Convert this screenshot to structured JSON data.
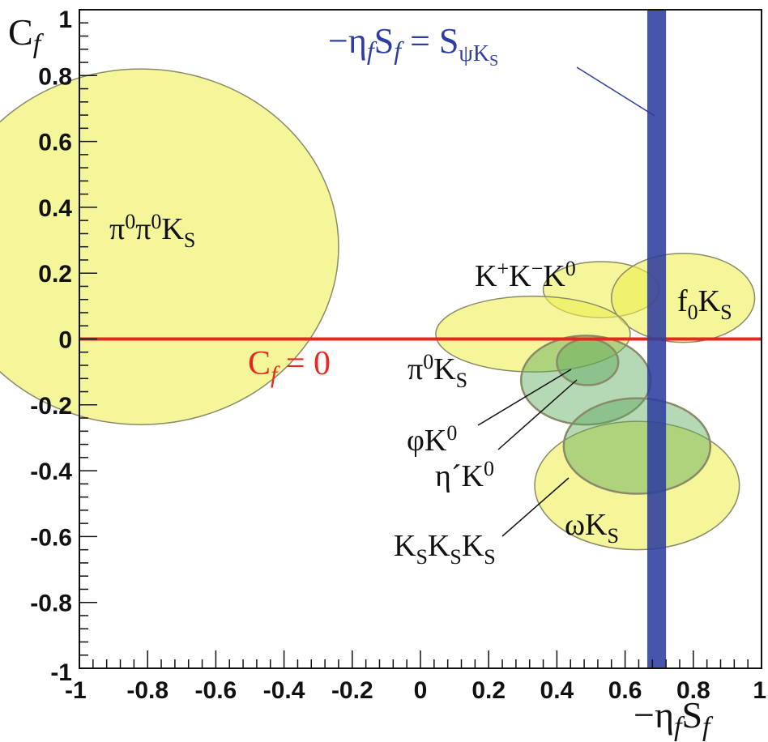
{
  "colors": {
    "ellipse_fill": "#eeee55",
    "ellipse_stroke": "#8a8a6a",
    "green_fill": "#5aa85a",
    "band_fill": "#2e3ea0",
    "zero_line": "#e8281e",
    "band_label": "#2e3ea0",
    "axis": "#111111"
  },
  "axes": {
    "x_ticks": [
      "-1",
      "-0.8",
      "-0.6",
      "-0.4",
      "-0.2",
      "0",
      "0.2",
      "0.4",
      "0.6",
      "0.8",
      "1"
    ],
    "y_ticks": [
      "-1",
      "-0.8",
      "-0.6",
      "-0.4",
      "-0.2",
      "0",
      "0.2",
      "0.4",
      "0.6",
      "0.8",
      "1"
    ],
    "x_label": {
      "main": "−η",
      "sub_f1": "f",
      "s": "S",
      "sub_f2": "f"
    },
    "y_label": {
      "main": "C",
      "sub": "f"
    }
  },
  "labels": {
    "pi0pi0ks": {
      "t1": "π",
      "s1": "0",
      "t2": "π",
      "s2": "0",
      "t3": "K",
      "s3": "S"
    },
    "kkk": {
      "t1": "K",
      "s1": "+",
      "t2": "K",
      "s2": "−",
      "t3": "K",
      "s3": "0"
    },
    "f0ks": {
      "t1": "f",
      "s1": "0",
      "t2": "K",
      "s2": "S"
    },
    "pi0ks": {
      "t1": "π",
      "s1": "0",
      "t2": "K",
      "s2": "S"
    },
    "phik0": {
      "t1": "φK",
      "s1": "0"
    },
    "etapk0": {
      "t1": "η´K",
      "s1": "0"
    },
    "omegaks": {
      "t1": "ωK",
      "s1": "S"
    },
    "ksksks": {
      "t1": "K",
      "s1": "S",
      "t2": "K",
      "s2": "S",
      "t3": "K",
      "s3": "S"
    },
    "cf_zero": {
      "t1": "C",
      "s1": "f",
      "t2": " = 0"
    },
    "band": {
      "t1": "−η",
      "s1": "f",
      "t2": "S",
      "s2": "f",
      "t3": " =  S",
      "s3": "ψK",
      "s4": "S"
    }
  },
  "chart_data": {
    "type": "scatter",
    "title": "",
    "xlabel": "−η_f S_f",
    "ylabel": "C_f",
    "xlim": [
      -1,
      1
    ],
    "ylim": [
      -1,
      1
    ],
    "grid": false,
    "ellipses": [
      {
        "name": "π0π0KS",
        "cx": -0.82,
        "cy": 0.28,
        "rx": 0.58,
        "ry": 0.54,
        "fill": "yellow"
      },
      {
        "name": "K+K−K0",
        "cx": 0.53,
        "cy": 0.15,
        "rx": 0.17,
        "ry": 0.085,
        "fill": "yellow"
      },
      {
        "name": "f0KS",
        "cx": 0.77,
        "cy": 0.125,
        "rx": 0.21,
        "ry": 0.135,
        "fill": "yellow"
      },
      {
        "name": "π0KS",
        "cx": 0.33,
        "cy": 0.015,
        "rx": 0.285,
        "ry": 0.115,
        "fill": "yellow"
      },
      {
        "name": "ωKS",
        "cx": 0.635,
        "cy": -0.445,
        "rx": 0.3,
        "ry": 0.195,
        "fill": "yellow"
      },
      {
        "name": "η´K0",
        "cx": 0.485,
        "cy": -0.125,
        "rx": 0.19,
        "ry": 0.135,
        "fill": "green"
      },
      {
        "name": "KSKSKS",
        "cx": 0.635,
        "cy": -0.325,
        "rx": 0.215,
        "ry": 0.145,
        "fill": "green"
      },
      {
        "name": "φK0",
        "cx": 0.49,
        "cy": -0.07,
        "rx": 0.09,
        "ry": 0.07,
        "fill": "green"
      }
    ],
    "bands": [
      {
        "name": "−ηf Sf = SψKS",
        "x_min": 0.665,
        "x_max": 0.72
      }
    ],
    "hlines": [
      {
        "name": "Cf = 0",
        "y": 0
      }
    ]
  }
}
